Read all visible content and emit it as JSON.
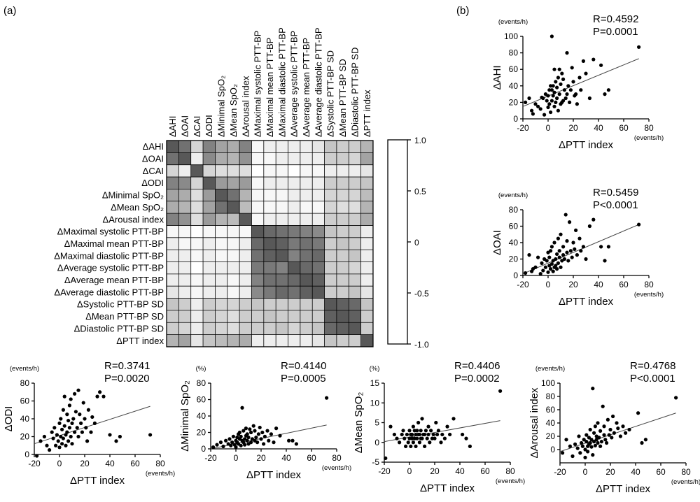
{
  "panel_labels": {
    "a": "(a)",
    "b": "(b)"
  },
  "chart_data": [
    {
      "id": "heatmap",
      "type": "heatmap",
      "title": "",
      "variables": [
        "ΔAHI",
        "ΔOAI",
        "ΔCAI",
        "ΔODI",
        "ΔMinimal SpO₂",
        "ΔMean SpO₂",
        "ΔArousal index",
        "ΔMaximal systolic PTT-BP",
        "ΔMaximal mean PTT-BP",
        "ΔMaximal diastolic PTT-BP",
        "ΔAverage systolic PTT-BP",
        "ΔAverage mean PTT-BP",
        "ΔAverage diastolic PTT-BP",
        "ΔSystolic PTT-BP SD",
        "ΔMean PTT-BP SD",
        "ΔDiastolic PTT-BP SD",
        "ΔPTT index"
      ],
      "colorbar": {
        "min": -1.0,
        "max": 1.0,
        "ticks": [
          "1.0",
          "0.5",
          "0",
          "-0.5",
          "-1.0"
        ]
      },
      "matrix": [
        [
          1.0,
          0.85,
          0.25,
          0.75,
          0.55,
          0.5,
          0.75,
          0.05,
          0.1,
          0.1,
          0.1,
          0.1,
          0.15,
          0.35,
          0.3,
          0.3,
          0.45
        ],
        [
          0.85,
          1.0,
          0.1,
          0.7,
          0.5,
          0.45,
          0.65,
          0.05,
          0.05,
          0.1,
          0.1,
          0.1,
          0.1,
          0.3,
          0.3,
          0.25,
          0.55
        ],
        [
          0.25,
          0.1,
          1.0,
          0.25,
          0.2,
          0.2,
          0.2,
          0.0,
          0.05,
          0.05,
          0.0,
          0.05,
          0.05,
          0.1,
          0.1,
          0.1,
          0.15
        ],
        [
          0.75,
          0.7,
          0.25,
          1.0,
          0.6,
          0.55,
          0.6,
          0.05,
          0.1,
          0.1,
          0.1,
          0.1,
          0.1,
          0.3,
          0.3,
          0.3,
          0.35
        ],
        [
          0.55,
          0.5,
          0.2,
          0.6,
          1.0,
          0.85,
          0.45,
          0.05,
          0.05,
          0.05,
          0.1,
          0.1,
          0.1,
          0.25,
          0.25,
          0.25,
          0.4
        ],
        [
          0.5,
          0.45,
          0.2,
          0.55,
          0.85,
          1.0,
          0.4,
          0.05,
          0.05,
          0.05,
          0.1,
          0.05,
          0.05,
          0.25,
          0.2,
          0.2,
          0.45
        ],
        [
          0.75,
          0.65,
          0.2,
          0.6,
          0.45,
          0.4,
          1.0,
          0.05,
          0.1,
          0.1,
          0.1,
          0.1,
          0.1,
          0.3,
          0.3,
          0.3,
          0.5
        ],
        [
          0.05,
          0.05,
          0.0,
          0.05,
          0.05,
          0.05,
          0.05,
          1.0,
          0.9,
          0.85,
          0.8,
          0.75,
          0.7,
          0.35,
          0.3,
          0.3,
          0.1
        ],
        [
          0.1,
          0.05,
          0.05,
          0.1,
          0.05,
          0.05,
          0.1,
          0.9,
          1.0,
          0.95,
          0.8,
          0.85,
          0.8,
          0.3,
          0.35,
          0.3,
          0.1
        ],
        [
          0.1,
          0.1,
          0.05,
          0.1,
          0.05,
          0.05,
          0.1,
          0.85,
          0.95,
          1.0,
          0.75,
          0.85,
          0.9,
          0.3,
          0.3,
          0.35,
          0.1
        ],
        [
          0.1,
          0.1,
          0.0,
          0.1,
          0.1,
          0.1,
          0.1,
          0.8,
          0.8,
          0.75,
          1.0,
          0.9,
          0.85,
          0.3,
          0.3,
          0.25,
          0.1
        ],
        [
          0.1,
          0.1,
          0.05,
          0.1,
          0.1,
          0.05,
          0.1,
          0.75,
          0.85,
          0.85,
          0.9,
          1.0,
          0.95,
          0.3,
          0.3,
          0.3,
          0.1
        ],
        [
          0.15,
          0.1,
          0.05,
          0.1,
          0.1,
          0.05,
          0.1,
          0.7,
          0.8,
          0.9,
          0.85,
          0.95,
          1.0,
          0.3,
          0.3,
          0.35,
          0.15
        ],
        [
          0.35,
          0.3,
          0.1,
          0.3,
          0.25,
          0.25,
          0.3,
          0.35,
          0.3,
          0.3,
          0.3,
          0.3,
          0.3,
          1.0,
          0.95,
          0.9,
          0.35
        ],
        [
          0.3,
          0.3,
          0.1,
          0.3,
          0.25,
          0.2,
          0.3,
          0.3,
          0.35,
          0.3,
          0.3,
          0.3,
          0.3,
          0.95,
          1.0,
          0.95,
          0.3
        ],
        [
          0.3,
          0.25,
          0.1,
          0.3,
          0.25,
          0.2,
          0.3,
          0.3,
          0.3,
          0.35,
          0.25,
          0.3,
          0.35,
          0.9,
          0.95,
          1.0,
          0.3
        ],
        [
          0.45,
          0.55,
          0.15,
          0.35,
          0.4,
          0.45,
          0.5,
          0.1,
          0.1,
          0.1,
          0.1,
          0.1,
          0.15,
          0.35,
          0.3,
          0.3,
          1.0
        ]
      ]
    },
    {
      "id": "ahi",
      "type": "scatter",
      "xlabel": "ΔPTT index",
      "ylabel": "ΔAHI",
      "xunit": "(events/h)",
      "yunit": "(events/h)",
      "xlim": [
        -20,
        80
      ],
      "ylim": [
        0,
        100
      ],
      "xticks": [
        -20,
        0,
        20,
        40,
        60,
        80
      ],
      "yticks": [
        0,
        20,
        40,
        60,
        80,
        100
      ],
      "r_text": "R=0.4592",
      "p_text": "P=0.0001",
      "fit": [
        [
          -20,
          15
        ],
        [
          72,
          73
        ]
      ],
      "x": [
        -18,
        -15,
        -13,
        -12,
        -10,
        -8,
        -6,
        -5,
        -4,
        -3,
        -2,
        -1,
        0,
        0,
        1,
        1,
        2,
        2,
        3,
        3,
        4,
        4,
        5,
        5,
        6,
        6,
        7,
        7,
        8,
        8,
        9,
        9,
        10,
        10,
        11,
        12,
        12,
        13,
        14,
        15,
        15,
        16,
        17,
        18,
        19,
        20,
        21,
        22,
        23,
        25,
        26,
        28,
        30,
        33,
        36,
        42,
        45,
        48,
        72,
        3,
        5,
        11
      ],
      "y": [
        20,
        25,
        10,
        6,
        18,
        15,
        12,
        26,
        25,
        5,
        30,
        22,
        14,
        28,
        35,
        18,
        40,
        8,
        22,
        35,
        28,
        40,
        32,
        15,
        20,
        45,
        25,
        38,
        10,
        50,
        30,
        60,
        18,
        42,
        55,
        22,
        48,
        35,
        25,
        30,
        80,
        40,
        20,
        35,
        62,
        45,
        28,
        30,
        18,
        50,
        35,
        70,
        55,
        25,
        72,
        65,
        30,
        35,
        87,
        100,
        60,
        20
      ]
    },
    {
      "id": "oai",
      "type": "scatter",
      "xlabel": "ΔPTT index",
      "ylabel": "ΔOAI",
      "xunit": "(events/h)",
      "yunit": "(events/h)",
      "xlim": [
        -20,
        80
      ],
      "ylim": [
        0,
        80
      ],
      "xticks": [
        -20,
        0,
        20,
        40,
        60,
        80
      ],
      "yticks": [
        0,
        20,
        40,
        60,
        80
      ],
      "r_text": "R=0.5459",
      "p_text": "P<0.0001",
      "fit": [
        [
          -20,
          2
        ],
        [
          72,
          62
        ]
      ],
      "x": [
        -18,
        -15,
        -13,
        -12,
        -10,
        -8,
        -6,
        -5,
        -4,
        -3,
        -2,
        -1,
        0,
        0,
        1,
        1,
        2,
        2,
        3,
        3,
        4,
        4,
        5,
        5,
        6,
        6,
        7,
        7,
        8,
        8,
        9,
        9,
        10,
        10,
        11,
        12,
        12,
        13,
        14,
        15,
        15,
        16,
        17,
        18,
        19,
        20,
        21,
        22,
        23,
        25,
        26,
        28,
        30,
        33,
        36,
        42,
        45,
        48,
        72
      ],
      "y": [
        3,
        25,
        5,
        8,
        10,
        22,
        2,
        15,
        6,
        20,
        10,
        18,
        4,
        28,
        12,
        22,
        8,
        30,
        14,
        35,
        5,
        18,
        10,
        40,
        20,
        12,
        26,
        8,
        45,
        15,
        30,
        22,
        10,
        50,
        18,
        25,
        35,
        20,
        74,
        28,
        42,
        18,
        65,
        30,
        22,
        40,
        32,
        55,
        25,
        45,
        30,
        35,
        20,
        60,
        68,
        35,
        18,
        35,
        62
      ]
    },
    {
      "id": "odi",
      "type": "scatter",
      "xlabel": "ΔPTT index",
      "ylabel": "ΔODI",
      "xunit": "(events/h)",
      "yunit": "(events/h)",
      "xlim": [
        -20,
        80
      ],
      "ylim": [
        0,
        80
      ],
      "xticks": [
        -20,
        0,
        20,
        40,
        60,
        80
      ],
      "yticks": [
        0,
        20,
        40,
        60,
        80
      ],
      "r_text": "R=0.3741",
      "p_text": "P=0.0020",
      "fit": [
        [
          -20,
          12
        ],
        [
          72,
          54
        ]
      ],
      "x": [
        -18,
        -15,
        -12,
        -10,
        -8,
        -6,
        -5,
        -4,
        -3,
        -2,
        -1,
        0,
        0,
        1,
        1,
        2,
        2,
        3,
        3,
        4,
        4,
        5,
        5,
        6,
        6,
        7,
        7,
        8,
        8,
        9,
        9,
        10,
        10,
        11,
        12,
        12,
        13,
        14,
        15,
        15,
        16,
        17,
        18,
        19,
        20,
        21,
        22,
        23,
        25,
        26,
        28,
        30,
        32,
        35,
        40,
        45,
        48,
        72
      ],
      "y": [
        -5,
        15,
        20,
        10,
        5,
        25,
        18,
        30,
        10,
        22,
        15,
        35,
        8,
        20,
        40,
        12,
        28,
        50,
        18,
        32,
        65,
        22,
        10,
        45,
        25,
        38,
        15,
        55,
        30,
        20,
        62,
        35,
        12,
        40,
        25,
        68,
        48,
        30,
        72,
        20,
        45,
        35,
        25,
        58,
        40,
        30,
        15,
        50,
        25,
        42,
        35,
        65,
        70,
        65,
        22,
        15,
        20,
        22
      ]
    },
    {
      "id": "minspo2",
      "type": "scatter",
      "xlabel": "ΔPTT index",
      "ylabel": "ΔMinimal SpO₂",
      "xunit": "(events/h)",
      "yunit": "(%)",
      "xlim": [
        -20,
        80
      ],
      "ylim": [
        0,
        80
      ],
      "xticks": [
        -20,
        0,
        20,
        40,
        60,
        80
      ],
      "yticks": [
        0,
        20,
        40,
        60,
        80
      ],
      "r_text": "R=0.4140",
      "p_text": "P=0.0005",
      "fit": [
        [
          -20,
          0
        ],
        [
          72,
          29
        ]
      ],
      "x": [
        -18,
        -15,
        -12,
        -10,
        -8,
        -6,
        -5,
        -4,
        -3,
        -2,
        -1,
        0,
        0,
        1,
        1,
        2,
        2,
        3,
        3,
        4,
        4,
        5,
        5,
        6,
        6,
        7,
        7,
        8,
        8,
        9,
        9,
        10,
        10,
        11,
        12,
        12,
        13,
        14,
        15,
        15,
        16,
        17,
        18,
        19,
        20,
        21,
        22,
        23,
        25,
        26,
        28,
        30,
        32,
        35,
        42,
        45,
        48,
        72
      ],
      "y": [
        2,
        5,
        8,
        3,
        10,
        6,
        12,
        4,
        8,
        15,
        5,
        10,
        2,
        14,
        8,
        18,
        6,
        12,
        20,
        4,
        15,
        10,
        50,
        8,
        22,
        12,
        5,
        16,
        25,
        10,
        18,
        6,
        14,
        24,
        8,
        20,
        12,
        28,
        10,
        22,
        14,
        8,
        18,
        26,
        12,
        20,
        6,
        15,
        22,
        10,
        18,
        8,
        25,
        16,
        10,
        10,
        6,
        62
      ]
    },
    {
      "id": "meanspo2",
      "type": "scatter",
      "xlabel": "ΔPTT index",
      "ylabel": "ΔMean SpO₂",
      "xunit": "(events/h)",
      "yunit": "(%)",
      "xlim": [
        -20,
        80
      ],
      "ylim": [
        -5,
        15
      ],
      "xticks": [
        -20,
        0,
        20,
        40,
        60,
        80
      ],
      "yticks": [
        -5,
        0,
        5,
        10,
        15
      ],
      "r_text": "R=0.4406",
      "p_text": "P=0.0002",
      "fit": [
        [
          -20,
          0.2
        ],
        [
          72,
          5.5
        ]
      ],
      "x": [
        -19,
        -15,
        -12,
        -10,
        -8,
        -6,
        -5,
        -4,
        -3,
        -2,
        -1,
        0,
        0,
        1,
        1,
        2,
        2,
        3,
        3,
        4,
        4,
        5,
        5,
        6,
        6,
        7,
        7,
        8,
        8,
        9,
        9,
        10,
        10,
        11,
        12,
        12,
        13,
        14,
        15,
        15,
        16,
        17,
        18,
        19,
        20,
        21,
        22,
        23,
        25,
        26,
        28,
        30,
        32,
        35,
        42,
        45,
        48,
        72
      ],
      "y": [
        -4,
        4,
        2,
        1,
        0,
        2,
        3,
        1,
        -1,
        2,
        0,
        1,
        3,
        2,
        -1,
        1,
        2,
        4,
        0,
        3,
        1,
        2,
        -1,
        1,
        3,
        2,
        5,
        0,
        2,
        1,
        3,
        6,
        1,
        2,
        -1,
        2,
        3,
        1,
        4,
        2,
        0,
        3,
        1,
        2,
        1,
        5,
        2,
        3,
        0,
        2,
        1,
        4,
        2,
        6,
        2,
        1,
        -1,
        13
      ]
    },
    {
      "id": "arousal",
      "type": "scatter",
      "xlabel": "ΔPTT index",
      "ylabel": "ΔArousal index",
      "xunit": "(events/h)",
      "yunit": "(events/h)",
      "xlim": [
        -20,
        80
      ],
      "ylim": [
        -20,
        100
      ],
      "xticks": [
        -20,
        0,
        20,
        40,
        60,
        80
      ],
      "yticks": [
        0,
        20,
        40,
        60,
        80,
        100
      ],
      "r_text": "R=0.4768",
      "p_text": "P<0.0001",
      "fit": [
        [
          -20,
          -3
        ],
        [
          72,
          55
        ]
      ],
      "x": [
        -18,
        -15,
        -12,
        -10,
        -8,
        -6,
        -5,
        -4,
        -3,
        -2,
        -1,
        0,
        0,
        1,
        1,
        2,
        2,
        3,
        3,
        4,
        4,
        5,
        5,
        6,
        6,
        7,
        7,
        8,
        8,
        9,
        9,
        10,
        10,
        11,
        12,
        12,
        13,
        14,
        15,
        15,
        16,
        17,
        18,
        19,
        20,
        21,
        22,
        23,
        25,
        26,
        28,
        30,
        32,
        35,
        42,
        45,
        48,
        72
      ],
      "y": [
        -5,
        15,
        5,
        -10,
        8,
        2,
        20,
        -5,
        10,
        5,
        15,
        0,
        -12,
        12,
        22,
        5,
        -3,
        18,
        8,
        30,
        10,
        4,
        15,
        92,
        -8,
        25,
        12,
        6,
        35,
        15,
        20,
        10,
        40,
        18,
        5,
        28,
        12,
        65,
        22,
        35,
        15,
        10,
        45,
        22,
        30,
        18,
        50,
        25,
        40,
        32,
        20,
        35,
        25,
        30,
        55,
        10,
        15,
        78
      ]
    }
  ]
}
